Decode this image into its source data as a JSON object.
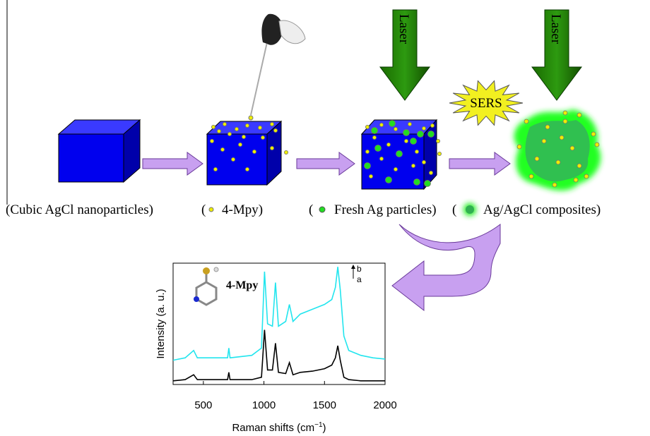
{
  "captions": [
    {
      "open": "",
      "label": "(Cubic AgCl nanoparticles)"
    },
    {
      "open": "(",
      "label": "4-Mpy)"
    },
    {
      "open": "(",
      "label": "Fresh Ag particles)"
    },
    {
      "open": "(",
      "label": "Ag/AgCl composites)"
    }
  ],
  "laser_labels": [
    "Laser",
    "Laser"
  ],
  "sers": "SERS",
  "chart_data": {
    "type": "line",
    "xlabel": "Raman shifts (cm",
    "xlabel_sup": "−1",
    "xlabel_end": ")",
    "ylabel": "Intensity (a. u.)",
    "annotation": "4-Mpy",
    "x": [
      250,
      350,
      420,
      450,
      600,
      700,
      710,
      720,
      900,
      980,
      1005,
      1030,
      1070,
      1095,
      1120,
      1180,
      1210,
      1240,
      1300,
      1400,
      1500,
      1560,
      1590,
      1610,
      1630,
      1660,
      1700,
      1800,
      1900,
      2000
    ],
    "series": [
      {
        "name": "b",
        "color": "#22e5ee",
        "values": [
          20,
          22,
          28,
          22,
          22,
          22,
          30,
          22,
          24,
          30,
          93,
          50,
          48,
          84,
          48,
          52,
          66,
          52,
          58,
          62,
          66,
          70,
          80,
          97,
          78,
          40,
          28,
          24,
          22,
          21
        ]
      },
      {
        "name": "a",
        "color": "#000000",
        "values": [
          3,
          4,
          8,
          4,
          4,
          4,
          10,
          4,
          4,
          6,
          45,
          12,
          12,
          34,
          10,
          9,
          18,
          8,
          10,
          11,
          13,
          16,
          22,
          32,
          20,
          6,
          4,
          3,
          3,
          3
        ]
      }
    ],
    "xlim": [
      250,
      2000
    ],
    "xticks": [
      500,
      1000,
      1500,
      2000
    ],
    "ylim": [
      0,
      100
    ]
  }
}
